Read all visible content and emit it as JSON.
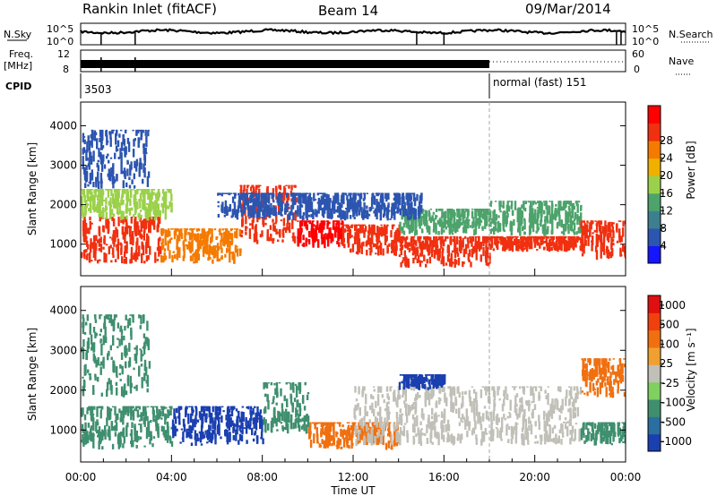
{
  "header": {
    "title": "Rankin Inlet (fitACF)",
    "beam": "Beam 14",
    "date": "09/Mar/2014"
  },
  "nsky_panel": {
    "label": "N.Sky",
    "right_label": "N.Search",
    "left_ticks": [
      "10^5",
      "10^0"
    ],
    "right_ticks": [
      "10^5",
      "10^0"
    ]
  },
  "freq_panel": {
    "label_line1": "Freq.",
    "label_line2": "[MHz]",
    "left_ticks": [
      "12",
      "8"
    ],
    "right_label": "Nave",
    "right_ticks": [
      "60",
      "0"
    ]
  },
  "cpid_panel": {
    "label": "CPID",
    "first_program": "3503",
    "second_program": "normal (fast) 151",
    "switch_hour": 18
  },
  "chart_data": [
    {
      "type": "heatmap",
      "title": "",
      "quantity": "Power",
      "xlabel": "",
      "ylabel": "Slant Range [km]",
      "xlim_hours": [
        0,
        24
      ],
      "ylim_km": [
        200,
        4600
      ],
      "y_ticks": [
        1000,
        2000,
        3000,
        4000
      ],
      "colorbar": {
        "label": "Power [dB]",
        "ticks": [
          4,
          8,
          12,
          16,
          20,
          24,
          28
        ],
        "colors": [
          "#1515ff",
          "#2c55b0",
          "#3d7f8e",
          "#4da36b",
          "#9bd14a",
          "#f0b000",
          "#f47a00",
          "#f03010",
          "#ff0000"
        ]
      },
      "bands": [
        {
          "start": 0.0,
          "end": 3.5,
          "low": 500,
          "high": 1700,
          "color": "#f03010"
        },
        {
          "start": 0.0,
          "end": 4.0,
          "low": 1600,
          "high": 2400,
          "color": "#9bd14a"
        },
        {
          "start": 0.0,
          "end": 3.0,
          "low": 2400,
          "high": 3900,
          "color": "#2c55b0"
        },
        {
          "start": 3.5,
          "end": 7.0,
          "low": 500,
          "high": 1400,
          "color": "#f47a00"
        },
        {
          "start": 7.0,
          "end": 9.5,
          "low": 1000,
          "high": 2500,
          "color": "#f03010"
        },
        {
          "start": 9.5,
          "end": 11.5,
          "low": 900,
          "high": 1600,
          "color": "#ff0000"
        },
        {
          "start": 11.5,
          "end": 14.0,
          "low": 700,
          "high": 1500,
          "color": "#f03010"
        },
        {
          "start": 14.0,
          "end": 18.0,
          "low": 400,
          "high": 1200,
          "color": "#f03010"
        },
        {
          "start": 14.0,
          "end": 18.0,
          "low": 1200,
          "high": 1900,
          "color": "#4da36b"
        },
        {
          "start": 18.0,
          "end": 22.0,
          "low": 800,
          "high": 1200,
          "color": "#f03010"
        },
        {
          "start": 18.0,
          "end": 22.0,
          "low": 1200,
          "high": 2100,
          "color": "#4da36b"
        },
        {
          "start": 22.0,
          "end": 24.0,
          "low": 600,
          "high": 1600,
          "color": "#f03010"
        },
        {
          "start": 6.0,
          "end": 15.0,
          "low": 1600,
          "high": 2300,
          "color": "#2c55b0"
        }
      ]
    },
    {
      "type": "heatmap",
      "title": "",
      "quantity": "Velocity",
      "xlabel": "Time UT",
      "ylabel": "Slant Range [km]",
      "xlim_hours": [
        0,
        24
      ],
      "ylim_km": [
        200,
        4600
      ],
      "x_ticks": [
        "00:00",
        "04:00",
        "08:00",
        "12:00",
        "16:00",
        "20:00",
        "00:00"
      ],
      "y_ticks": [
        1000,
        2000,
        3000,
        4000
      ],
      "colorbar": {
        "label": "Velocity [m s⁻¹]",
        "ticks": [
          1000,
          500,
          100,
          25,
          -25,
          -100,
          -500,
          -1000
        ],
        "colors": [
          "#1a3fb0",
          "#2a6fa0",
          "#3f8f6f",
          "#7fd060",
          "#c0c0b8",
          "#f0a030",
          "#f07010",
          "#f04010",
          "#e01010"
        ]
      },
      "bands": [
        {
          "start": 0.0,
          "end": 4.0,
          "low": 500,
          "high": 1600,
          "color": "#3f8f6f"
        },
        {
          "start": 0.0,
          "end": 3.0,
          "low": 1800,
          "high": 3900,
          "color": "#3f8f6f"
        },
        {
          "start": 4.0,
          "end": 8.0,
          "low": 600,
          "high": 1600,
          "color": "#1a3fb0"
        },
        {
          "start": 8.0,
          "end": 10.0,
          "low": 900,
          "high": 2200,
          "color": "#3f8f6f"
        },
        {
          "start": 10.0,
          "end": 14.0,
          "low": 500,
          "high": 1200,
          "color": "#f07010"
        },
        {
          "start": 12.0,
          "end": 22.0,
          "low": 600,
          "high": 2100,
          "color": "#c0c0b8"
        },
        {
          "start": 14.0,
          "end": 16.0,
          "low": 2000,
          "high": 2400,
          "color": "#1a3fb0"
        },
        {
          "start": 22.0,
          "end": 24.0,
          "low": 600,
          "high": 1200,
          "color": "#3f8f6f"
        },
        {
          "start": 22.0,
          "end": 24.0,
          "low": 1800,
          "high": 2800,
          "color": "#f07010"
        }
      ]
    }
  ]
}
